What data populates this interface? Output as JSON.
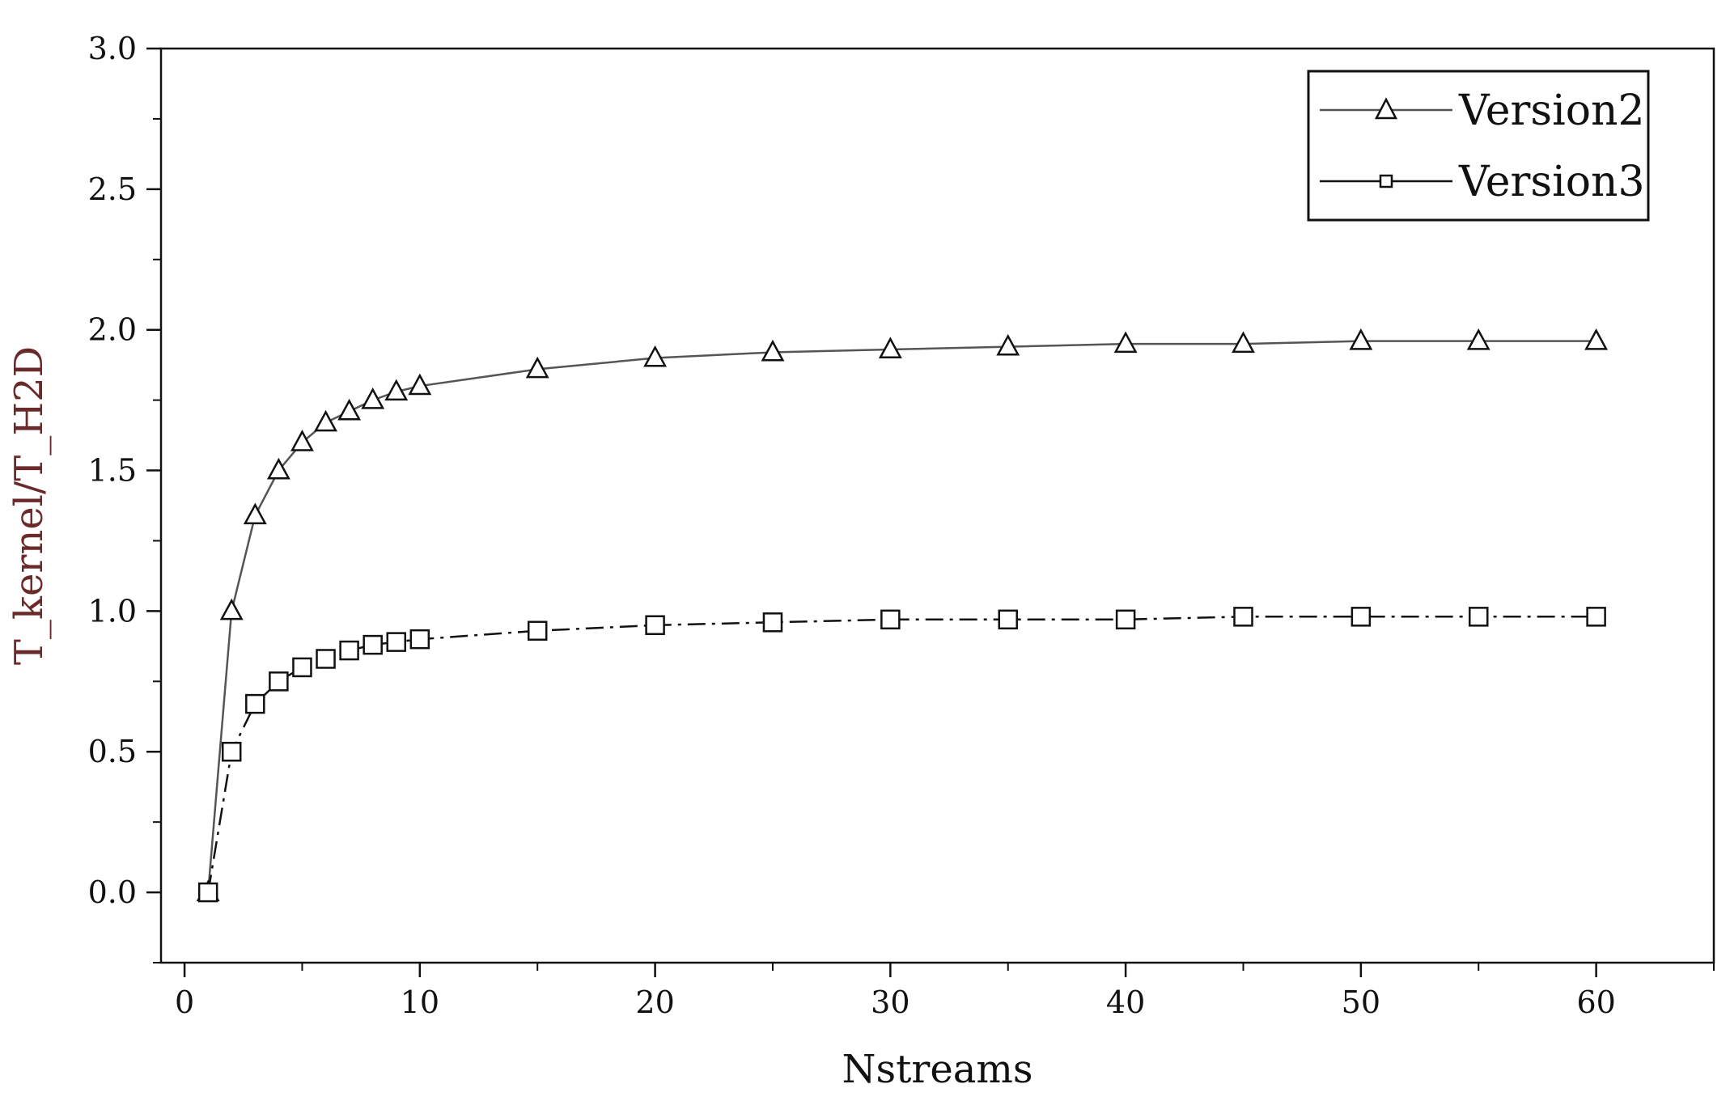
{
  "chart_data": {
    "type": "line",
    "title": "",
    "xlabel": "Nstreams",
    "ylabel": "T_kernel/T_H2D",
    "xlim": [
      -1,
      65
    ],
    "ylim": [
      -0.25,
      3.0
    ],
    "xticks": [
      0,
      10,
      20,
      30,
      40,
      50,
      60
    ],
    "xtick_labels": [
      "0",
      "10",
      "20",
      "30",
      "40",
      "50",
      "60"
    ],
    "yticks": [
      0.0,
      0.5,
      1.0,
      1.5,
      2.0,
      2.5,
      3.0
    ],
    "ytick_labels": [
      "0.0",
      "0.5",
      "1.0",
      "1.5",
      "2.0",
      "2.5",
      "3.0"
    ],
    "grid": false,
    "legend_position": "top-right",
    "series": [
      {
        "name": "Version2",
        "marker": "triangle",
        "line_style": "solid",
        "color": "#555555",
        "x": [
          1,
          2,
          3,
          4,
          5,
          6,
          7,
          8,
          9,
          10,
          15,
          20,
          25,
          30,
          35,
          40,
          45,
          50,
          55,
          60
        ],
        "y": [
          0.0,
          1.0,
          1.34,
          1.5,
          1.6,
          1.67,
          1.71,
          1.75,
          1.78,
          1.8,
          1.86,
          1.9,
          1.92,
          1.93,
          1.94,
          1.95,
          1.95,
          1.96,
          1.96,
          1.96
        ]
      },
      {
        "name": "Version3",
        "marker": "square",
        "line_style": "dashdot",
        "color": "#111111",
        "x": [
          1,
          2,
          3,
          4,
          5,
          6,
          7,
          8,
          9,
          10,
          15,
          20,
          25,
          30,
          35,
          40,
          45,
          50,
          55,
          60
        ],
        "y": [
          0.0,
          0.5,
          0.67,
          0.75,
          0.8,
          0.83,
          0.86,
          0.88,
          0.89,
          0.9,
          0.93,
          0.95,
          0.96,
          0.97,
          0.97,
          0.97,
          0.98,
          0.98,
          0.98,
          0.98
        ]
      }
    ]
  }
}
